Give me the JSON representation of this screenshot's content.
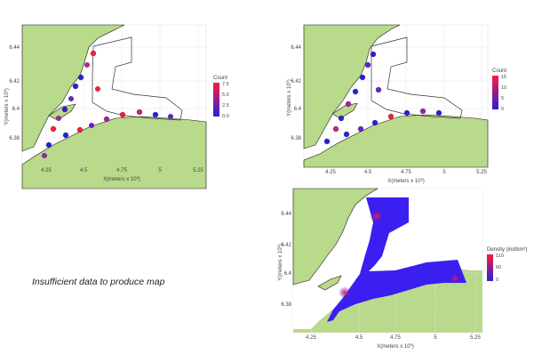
{
  "panels": [
    {
      "id": "count-left",
      "y_ticks": [
        "6.44",
        "6.42",
        "6.4",
        "6.38"
      ],
      "x_ticks": [
        "4.25",
        "4.5",
        "4.75",
        "5",
        "5.25"
      ],
      "x_label": "X(meters x 10",
      "x_label_sup": "6",
      "x_label_end": ")",
      "y_label": "Y(meters x 10",
      "y_label_sup": "5",
      "y_label_end": ")",
      "legend": {
        "title": "Count",
        "ticks": [
          "7.5",
          "5.0",
          "2.5",
          "0.0"
        ],
        "color_low": "#2a1fd8",
        "color_high": "#ff1a3a"
      }
    },
    {
      "id": "count-right",
      "y_ticks": [
        "6.44",
        "6.42",
        "6.4",
        "6.38"
      ],
      "x_ticks": [
        "4.25",
        "4.5",
        "4.75",
        "5",
        "5.25"
      ],
      "x_label": "X(meters x 10",
      "x_label_sup": "5",
      "x_label_end": ")",
      "y_label": "Y(meters x 10",
      "y_label_sup": "5",
      "y_label_end": ")",
      "legend": {
        "title": "Count",
        "ticks": [
          "15",
          "10",
          "5",
          "0"
        ],
        "color_low": "#2a1fd8",
        "color_high": "#ff1a3a"
      }
    },
    {
      "id": "density-right",
      "y_ticks": [
        "6.44",
        "6.42",
        "6.4",
        "6.38"
      ],
      "x_ticks": [
        "4.25",
        "4.5",
        "4.75",
        "5",
        "5.25"
      ],
      "x_label": "X(meters x 10",
      "x_label_sup": "5",
      "x_label_end": ")",
      "y_label": "Y(meters x 10",
      "y_label_sup": "5",
      "y_label_end": ")",
      "legend": {
        "title": "Density (ind/km²)",
        "ticks": [
          "110",
          "60",
          "0"
        ],
        "color_low": "#2a1fd8",
        "color_high": "#ff1a3a"
      }
    }
  ],
  "message": "Insufficient data to produce map",
  "colors": {
    "land": "#b9d98b",
    "land_stroke": "#1a1a1a",
    "grid": "#e6e6e6",
    "density_fill": "#3b1ef0"
  }
}
